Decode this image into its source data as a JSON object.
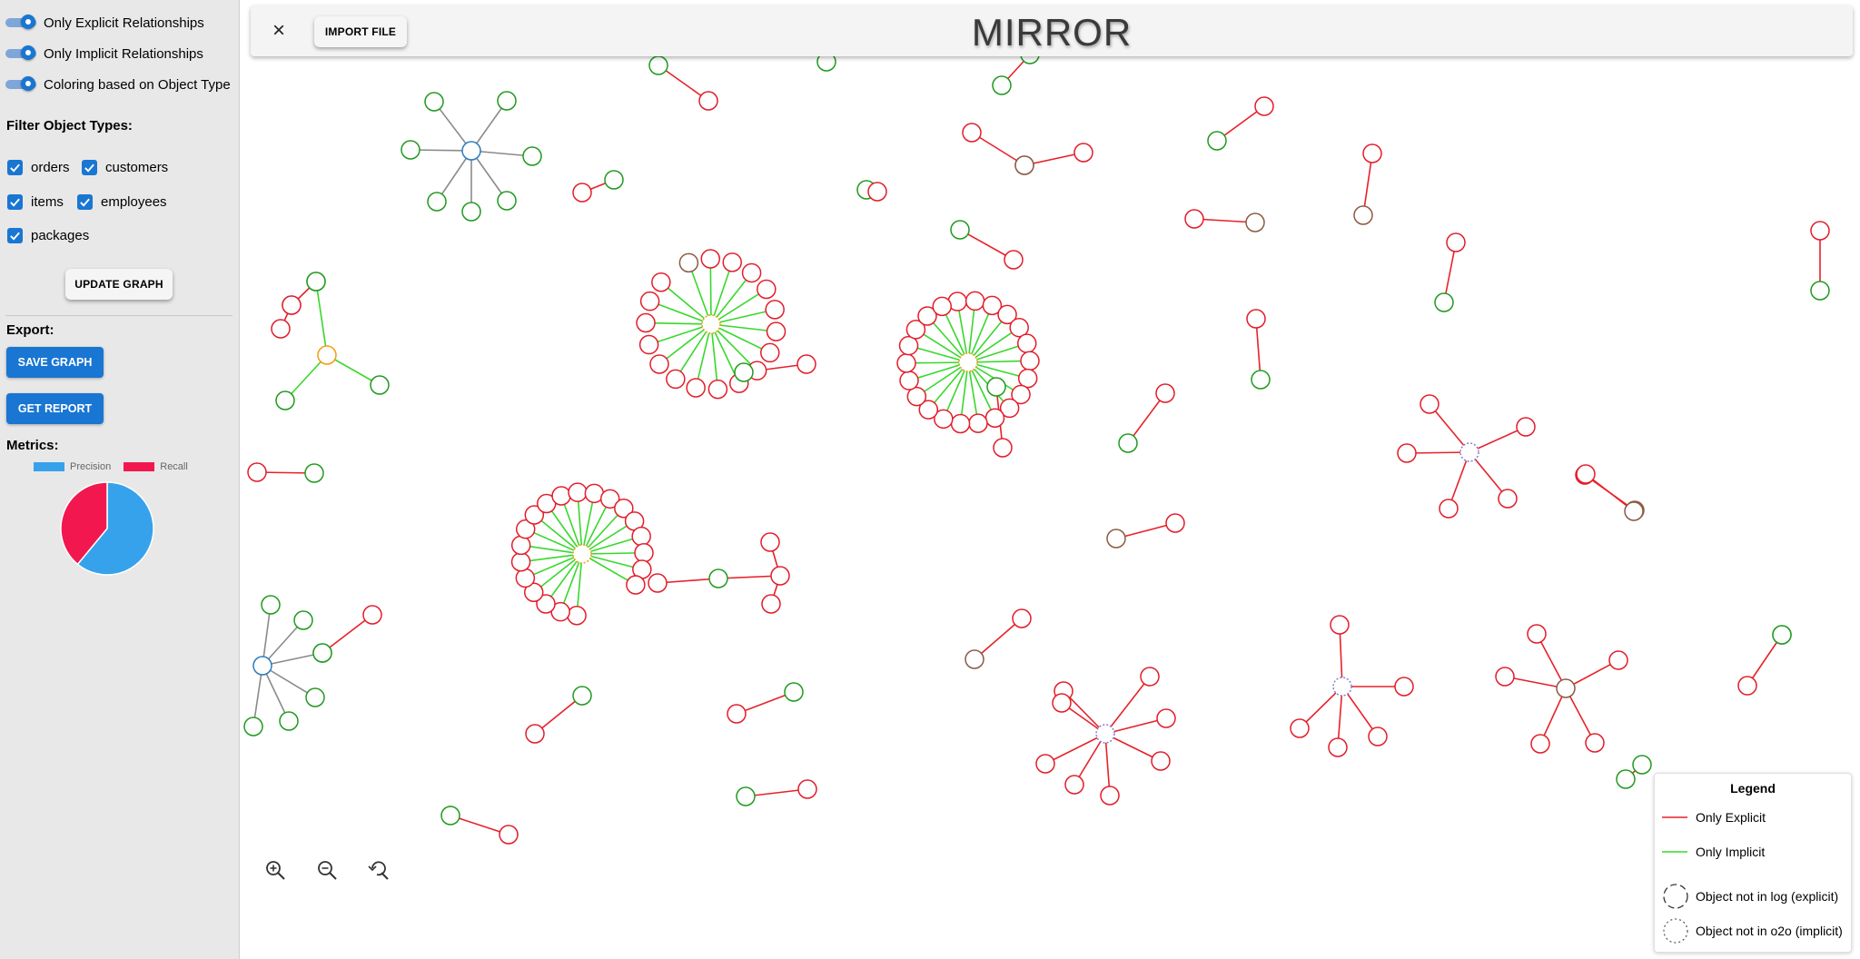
{
  "app": {
    "title": "MIRROR"
  },
  "header": {
    "import_label": "IMPORT FILE",
    "close_symbol": "×"
  },
  "sidebar": {
    "toggles": [
      {
        "label": "Only Explicit Relationships",
        "on": true
      },
      {
        "label": "Only Implicit Relationships",
        "on": true
      },
      {
        "label": "Coloring based on Object Type",
        "on": true
      }
    ],
    "filter_heading": "Filter Object Types:",
    "object_types": [
      {
        "label": "orders",
        "checked": true
      },
      {
        "label": "customers",
        "checked": true
      },
      {
        "label": "items",
        "checked": true
      },
      {
        "label": "employees",
        "checked": true
      },
      {
        "label": "packages",
        "checked": true
      }
    ],
    "update_label": "UPDATE GRAPH",
    "export_heading": "Export:",
    "save_label": "SAVE GRAPH",
    "report_label": "GET REPORT",
    "metrics_heading": "Metrics:"
  },
  "metrics": {
    "precision_label": "Precision",
    "recall_label": "Recall",
    "precision_value": 0.61,
    "recall_value": 0.39,
    "precision_color": "#36a2eb",
    "recall_color": "#f2184f"
  },
  "legend": {
    "title": "Legend",
    "explicit_label": "Only Explicit",
    "implicit_label": "Only Implicit",
    "not_in_log_label": "Object not in log (explicit)",
    "not_in_o2o_label": "Object not in o2o (implicit)",
    "explicit_color": "#e8212a",
    "implicit_color": "#38d82c"
  },
  "zoom_controls": [
    "zoom-in-icon",
    "zoom-out-icon",
    "reset-zoom-icon"
  ]
}
